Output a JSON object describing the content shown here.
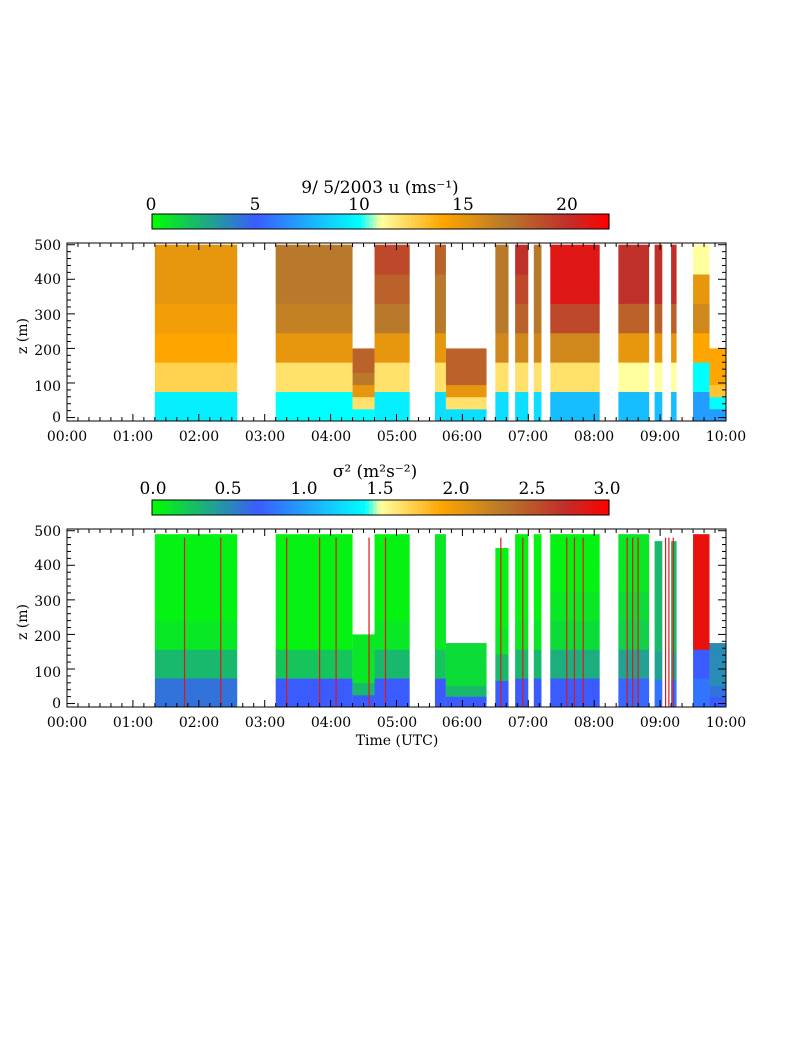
{
  "figure": {
    "date_label": "9/ 5/2003",
    "xlabel": "Time (UTC)"
  },
  "chart_data": [
    {
      "type": "heatmap",
      "title": "9/ 5/2003  u  (ms⁻¹)",
      "variable": "u",
      "units": "ms⁻¹",
      "colorbar": {
        "range": [
          0,
          22
        ],
        "tick_values": [
          0,
          5,
          10,
          15,
          20
        ],
        "tick_labels": [
          "0",
          "5",
          "10",
          "15",
          "20"
        ],
        "colors": [
          {
            "value": 0,
            "color": "#00ff00"
          },
          {
            "value": 5,
            "color": "#3a5cff"
          },
          {
            "value": 10,
            "color": "#00ffff"
          },
          {
            "value": 11,
            "color": "#ffffa0"
          },
          {
            "value": 14,
            "color": "#ffa500"
          },
          {
            "value": 17,
            "color": "#b87a2a"
          },
          {
            "value": 20,
            "color": "#c0302a"
          },
          {
            "value": 22,
            "color": "#ff0000"
          }
        ]
      },
      "ylabel": "z (m)",
      "xlim": [
        "00:00",
        "10:00"
      ],
      "ylim": [
        -10,
        505
      ],
      "x_tick_labels": [
        "00:00",
        "01:00",
        "02:00",
        "03:00",
        "04:00",
        "05:00",
        "06:00",
        "07:00",
        "08:00",
        "09:00",
        "10:00"
      ],
      "y_tick_values": [
        0,
        100,
        200,
        300,
        400,
        500
      ],
      "y_tick_labels": [
        "0",
        "100",
        "200",
        "300",
        "400",
        "500"
      ],
      "data_blocks": [
        {
          "start": "01:20",
          "end": "02:35",
          "z_top": 500,
          "values": [
            9.5,
            12.5,
            14,
            14.5,
            15,
            15
          ]
        },
        {
          "start": "03:10",
          "end": "04:20",
          "z_top": 500,
          "values": [
            10,
            12,
            15,
            16.5,
            17,
            17
          ]
        },
        {
          "start": "04:20",
          "end": "04:40",
          "z_top": 200,
          "values": [
            10,
            12,
            15,
            17,
            18,
            18
          ]
        },
        {
          "start": "04:40",
          "end": "05:12",
          "z_top": 500,
          "values": [
            9.5,
            12,
            15,
            17,
            18,
            19
          ]
        },
        {
          "start": "05:35",
          "end": "05:45",
          "z_top": 500,
          "values": [
            9,
            12,
            15,
            17,
            17,
            18
          ]
        },
        {
          "start": "05:45",
          "end": "06:22",
          "z_top": 200,
          "values": [
            9,
            12,
            15,
            18,
            18,
            18
          ]
        },
        {
          "start": "06:30",
          "end": "06:42",
          "z_top": 500,
          "values": [
            9,
            12,
            16,
            17,
            17,
            17
          ]
        },
        {
          "start": "06:48",
          "end": "07:00",
          "z_top": 500,
          "values": [
            9,
            12,
            16,
            18,
            19,
            20
          ]
        },
        {
          "start": "07:05",
          "end": "07:12",
          "z_top": 500,
          "values": [
            9,
            12,
            16,
            17,
            17,
            17
          ]
        },
        {
          "start": "07:20",
          "end": "08:05",
          "z_top": 500,
          "values": [
            8,
            12,
            16,
            19,
            21,
            21
          ]
        },
        {
          "start": "08:22",
          "end": "08:50",
          "z_top": 500,
          "values": [
            8,
            11,
            15,
            18,
            20,
            20
          ]
        },
        {
          "start": "08:55",
          "end": "09:02",
          "z_top": 500,
          "values": [
            8,
            11,
            15,
            18,
            20,
            20
          ]
        },
        {
          "start": "09:10",
          "end": "09:15",
          "z_top": 500,
          "values": [
            8,
            11,
            15,
            18,
            20,
            20
          ]
        },
        {
          "start": "09:30",
          "end": "09:45",
          "z_top": 500,
          "values": [
            7,
            10,
            14,
            16,
            15,
            11
          ]
        },
        {
          "start": "09:45",
          "end": "10:00",
          "z_top": 200,
          "values": [
            7,
            10,
            13,
            14,
            14,
            14
          ]
        }
      ]
    },
    {
      "type": "heatmap",
      "title": "σ² (m²s⁻²)",
      "variable": "σ²",
      "units": "m²s⁻²",
      "colorbar": {
        "range": [
          0,
          3
        ],
        "tick_values": [
          0,
          0.5,
          1,
          1.5,
          2,
          2.5,
          3
        ],
        "tick_labels": [
          "0.0",
          "0.5",
          "1.0",
          "1.5",
          "2.0",
          "2.5",
          "3.0"
        ],
        "colors": [
          {
            "value": 0,
            "color": "#00ff00"
          },
          {
            "value": 0.7,
            "color": "#3a5cff"
          },
          {
            "value": 1.4,
            "color": "#00ffff"
          },
          {
            "value": 1.5,
            "color": "#ffffa0"
          },
          {
            "value": 1.9,
            "color": "#ffa500"
          },
          {
            "value": 2.3,
            "color": "#b87a2a"
          },
          {
            "value": 2.7,
            "color": "#c0302a"
          },
          {
            "value": 3,
            "color": "#ff0000"
          }
        ]
      },
      "ylabel": "z (m)",
      "xlabel": "Time (UTC)",
      "xlim": [
        "00:00",
        "10:00"
      ],
      "ylim": [
        -10,
        505
      ],
      "x_tick_labels": [
        "00:00",
        "01:00",
        "02:00",
        "03:00",
        "04:00",
        "05:00",
        "06:00",
        "07:00",
        "08:00",
        "09:00",
        "10:00"
      ],
      "y_tick_values": [
        0,
        100,
        200,
        300,
        400,
        500
      ],
      "y_tick_labels": [
        "0",
        "100",
        "200",
        "300",
        "400",
        "500"
      ],
      "data_blocks": [
        {
          "start": "01:20",
          "end": "02:35",
          "z_top": 490,
          "values": [
            0.6,
            0.3,
            0.1,
            0.05,
            0.05,
            0.05
          ]
        },
        {
          "start": "03:10",
          "end": "04:20",
          "z_top": 490,
          "values": [
            0.7,
            0.25,
            0.05,
            0.05,
            0.05,
            0.05
          ]
        },
        {
          "start": "04:20",
          "end": "04:40",
          "z_top": 200,
          "values": [
            0.7,
            0.3,
            0.1,
            0.1,
            0.1,
            0.1
          ]
        },
        {
          "start": "04:40",
          "end": "05:12",
          "z_top": 490,
          "values": [
            0.7,
            0.3,
            0.1,
            0.05,
            0.05,
            0.05
          ]
        },
        {
          "start": "05:35",
          "end": "05:45",
          "z_top": 490,
          "values": [
            0.7,
            0.25,
            0.1,
            0.1,
            0.1,
            0.1
          ]
        },
        {
          "start": "05:45",
          "end": "06:22",
          "z_top": 175,
          "values": [
            0.7,
            0.3,
            0.15,
            0.15,
            0.15,
            0.15
          ]
        },
        {
          "start": "06:30",
          "end": "06:42",
          "z_top": 450,
          "values": [
            0.7,
            0.3,
            0.1,
            0.05,
            0.05,
            0.05
          ]
        },
        {
          "start": "06:48",
          "end": "07:00",
          "z_top": 490,
          "values": [
            0.7,
            0.3,
            0.1,
            0.05,
            0.05,
            0.05
          ]
        },
        {
          "start": "07:05",
          "end": "07:12",
          "z_top": 490,
          "values": [
            0.7,
            0.3,
            0.1,
            0.05,
            0.05,
            0.05
          ]
        },
        {
          "start": "07:20",
          "end": "08:05",
          "z_top": 490,
          "values": [
            0.7,
            0.35,
            0.15,
            0.1,
            0.05,
            0.05
          ]
        },
        {
          "start": "08:22",
          "end": "08:50",
          "z_top": 490,
          "values": [
            0.75,
            0.4,
            0.2,
            0.15,
            0.1,
            0.1
          ]
        },
        {
          "start": "08:55",
          "end": "09:02",
          "z_top": 470,
          "values": [
            0.8,
            0.4,
            0.3,
            0.3,
            0.3,
            0.3
          ]
        },
        {
          "start": "09:10",
          "end": "09:15",
          "z_top": 470,
          "values": [
            0.8,
            0.4,
            0.3,
            0.3,
            0.3,
            0.3
          ]
        },
        {
          "start": "09:30",
          "end": "09:45",
          "z_top": 490,
          "values": [
            0.8,
            0.7,
            2.9,
            2.9,
            2.9,
            2.9
          ]
        },
        {
          "start": "09:45",
          "end": "10:00",
          "z_top": 175,
          "values": [
            0.7,
            0.6,
            0.5,
            0.5,
            0.5,
            0.5
          ]
        }
      ],
      "spikes": [
        "01:47",
        "02:20",
        "03:20",
        "03:50",
        "04:05",
        "04:35",
        "04:50",
        "06:35",
        "06:55",
        "07:35",
        "07:42",
        "07:50",
        "08:30",
        "08:35",
        "08:40",
        "09:05",
        "09:08",
        "09:12"
      ]
    }
  ]
}
